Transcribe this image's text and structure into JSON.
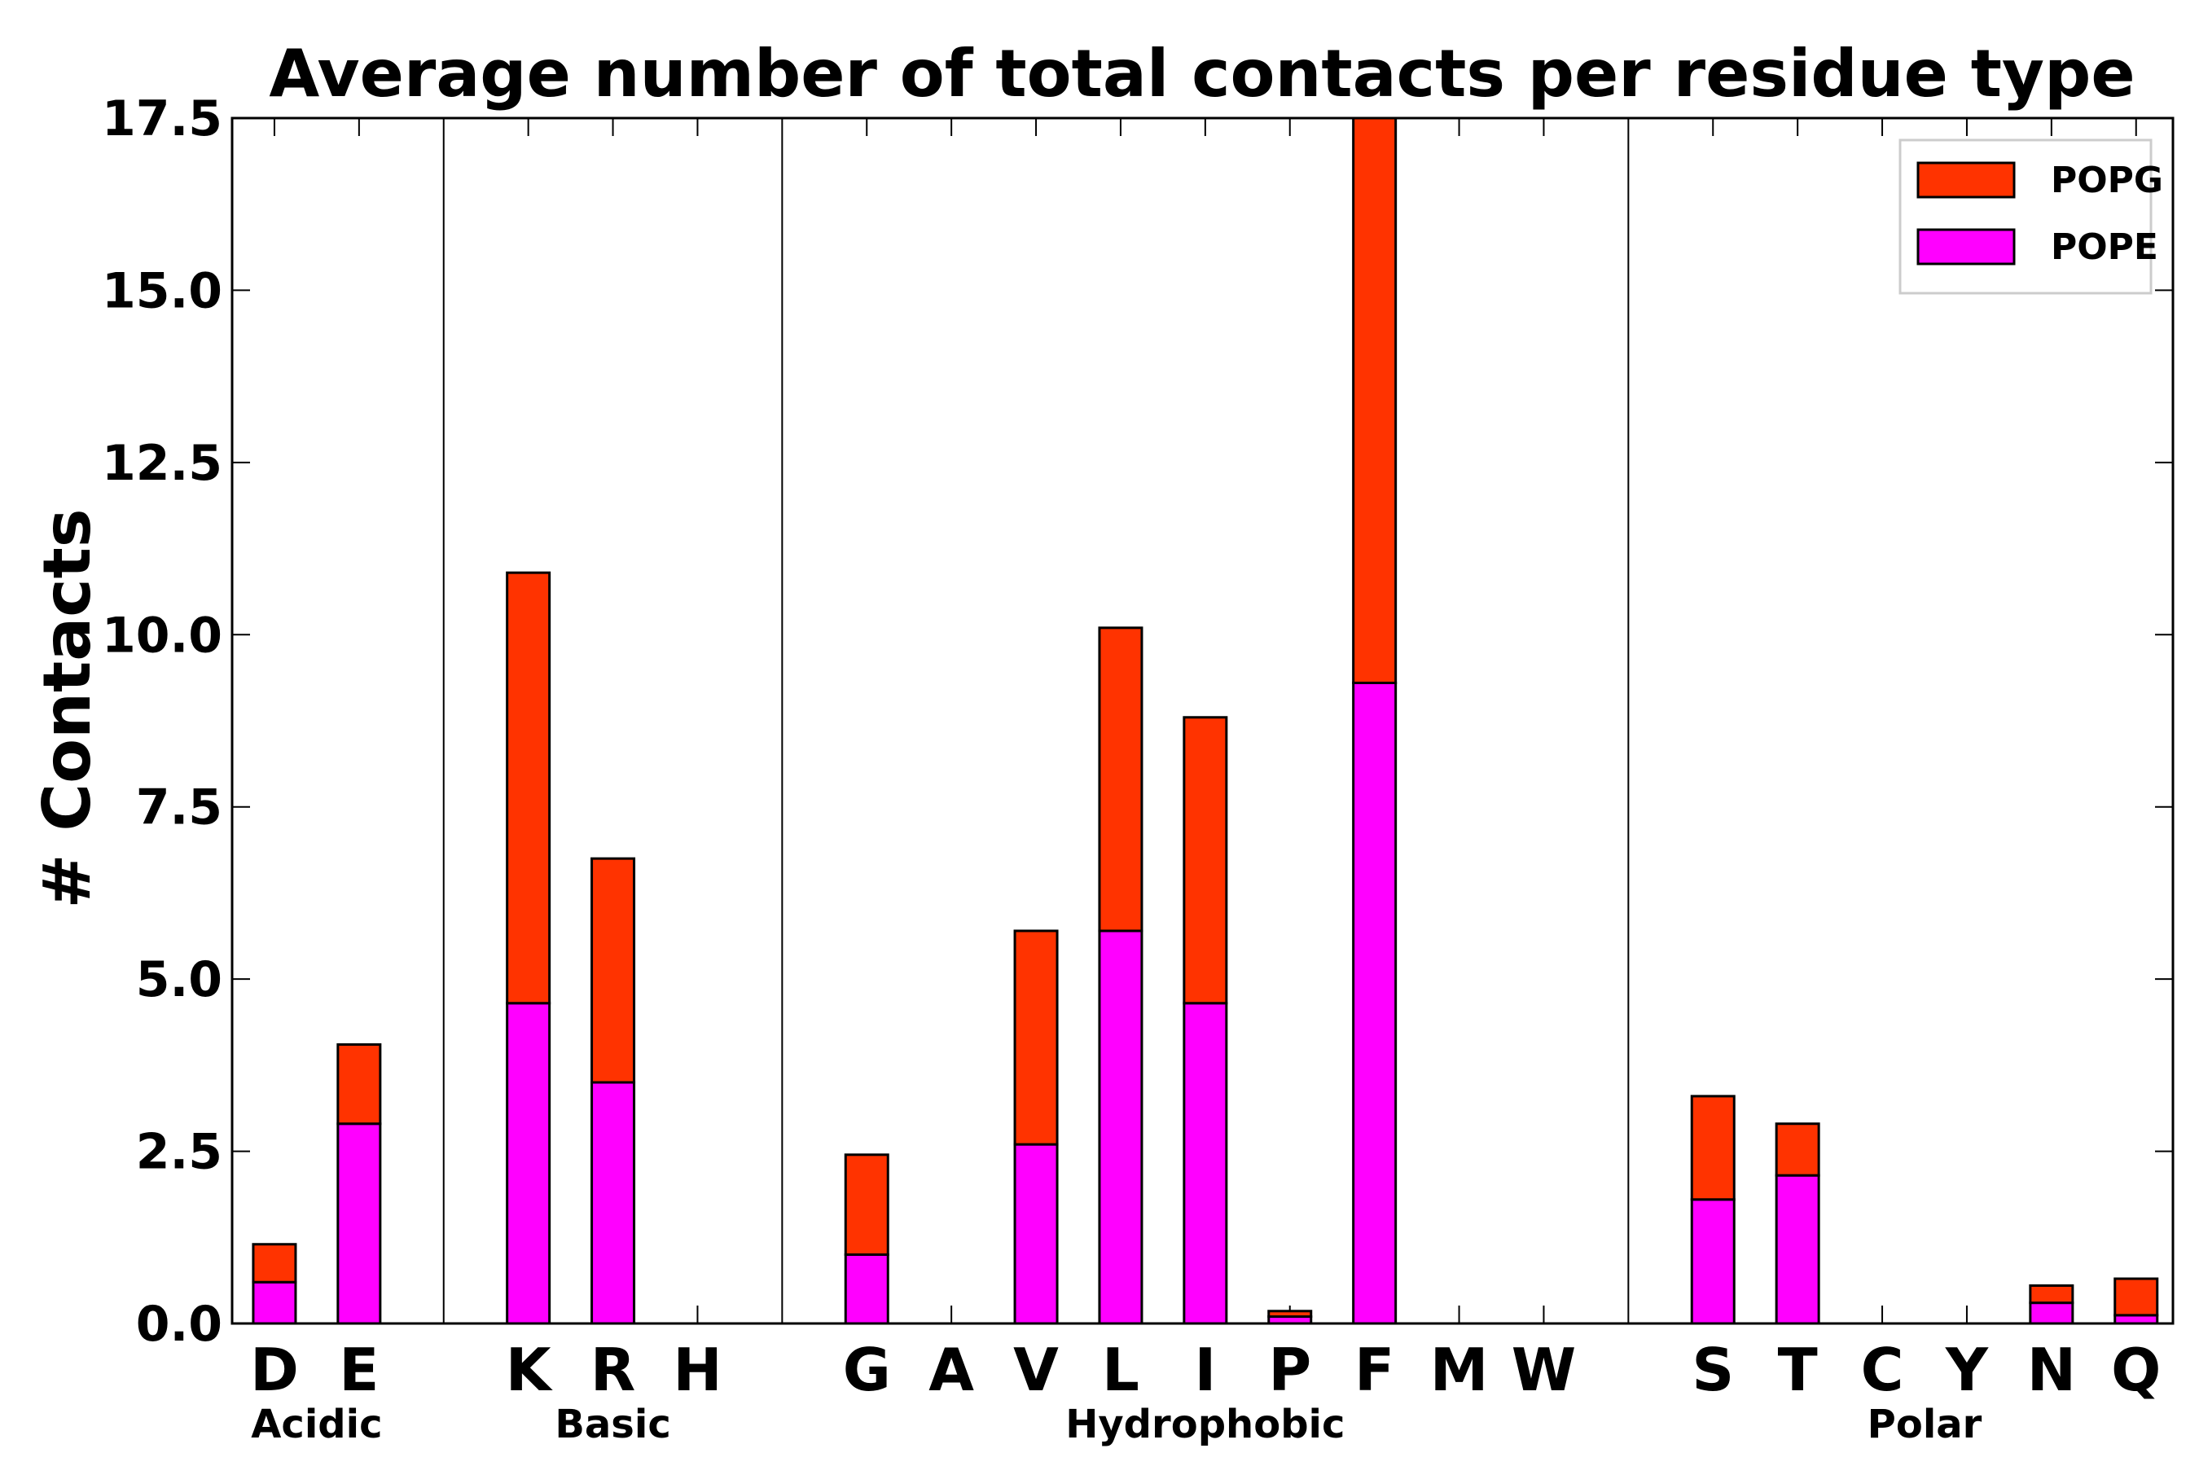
{
  "chart_data": {
    "type": "bar",
    "stacked": true,
    "title": "Average number of total contacts per residue type",
    "xlabel": "",
    "ylabel": "# Contacts",
    "ylim": [
      0,
      17.5
    ],
    "yticks": [
      "0.0",
      "2.5",
      "5.0",
      "7.5",
      "10.0",
      "12.5",
      "15.0",
      "17.5"
    ],
    "legend_position": "top-right",
    "groups": [
      {
        "name": "Acidic",
        "residues": [
          "D",
          "E"
        ]
      },
      {
        "name": "Basic",
        "residues": [
          "K",
          "R",
          "H"
        ]
      },
      {
        "name": "Hydrophobic",
        "residues": [
          "G",
          "A",
          "V",
          "L",
          "I",
          "P",
          "F",
          "M",
          "W"
        ]
      },
      {
        "name": "Polar",
        "residues": [
          "S",
          "T",
          "C",
          "Y",
          "N",
          "Q"
        ]
      }
    ],
    "series": [
      {
        "name": "POPE",
        "color": "#ff00ff",
        "values": {
          "D": 0.6,
          "E": 2.9,
          "K": 4.65,
          "R": 3.5,
          "H": 0.0,
          "G": 1.0,
          "A": 0.0,
          "V": 2.6,
          "L": 5.7,
          "I": 4.65,
          "P": 0.1,
          "F": 9.3,
          "M": 0.0,
          "W": 0.0,
          "S": 1.8,
          "T": 2.15,
          "C": 0.0,
          "Y": 0.0,
          "N": 0.3,
          "Q": 0.12
        }
      },
      {
        "name": "POPG",
        "color": "#ff3300",
        "values": {
          "D": 0.55,
          "E": 1.15,
          "K": 6.25,
          "R": 3.25,
          "H": 0.0,
          "G": 1.45,
          "A": 0.0,
          "V": 3.1,
          "L": 4.4,
          "I": 4.15,
          "P": 0.08,
          "F": 8.2,
          "M": 0.0,
          "W": 0.0,
          "S": 1.5,
          "T": 0.75,
          "C": 0.0,
          "Y": 0.0,
          "N": 0.25,
          "Q": 0.53
        }
      }
    ]
  }
}
